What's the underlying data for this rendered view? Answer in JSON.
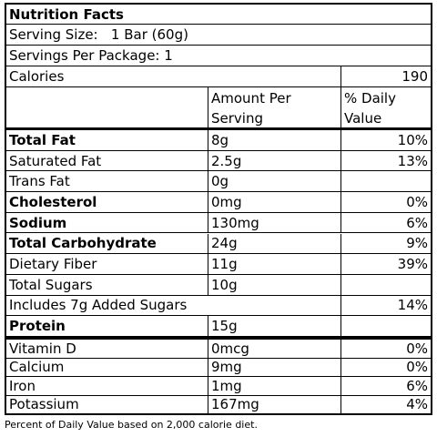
{
  "title": "Nutrition Facts",
  "serving_size": "Serving Size:   1 Bar (60g)",
  "servings_per_package": "Servings Per Package: 1",
  "calories": {
    "label": "Calories",
    "value": "190"
  },
  "header": {
    "amount": "Amount Per Serving",
    "dv": "% Daily Value"
  },
  "nutrients": [
    {
      "name": "Total Fat",
      "amount": "8g",
      "dv": "10%",
      "bold": true
    },
    {
      "name": "Saturated Fat",
      "amount": "2.5g",
      "dv": "13%",
      "bold": false
    },
    {
      "name": "Trans Fat",
      "amount": "0g",
      "dv": "",
      "bold": false
    },
    {
      "name": "Cholesterol",
      "amount": "0mg",
      "dv": "0%",
      "bold": true
    },
    {
      "name": "Sodium",
      "amount": "130mg",
      "dv": "6%",
      "bold": true
    },
    {
      "name": "Total Carbohydrate",
      "amount": "24g",
      "dv": "9%",
      "bold": true
    },
    {
      "name": "Dietary Fiber",
      "amount": "11g",
      "dv": "39%",
      "bold": false
    },
    {
      "name": "Total Sugars",
      "amount": "10g",
      "dv": "",
      "bold": false
    },
    {
      "name": "Includes 7g Added Sugars",
      "amount": "",
      "dv": "14%",
      "bold": false,
      "span": true
    },
    {
      "name": "Protein",
      "amount": "15g",
      "dv": "",
      "bold": true
    }
  ],
  "vitamins": [
    {
      "name": "Vitamin D",
      "amount": "0mcg",
      "dv": "0%"
    },
    {
      "name": "Calcium",
      "amount": "9mg",
      "dv": "0%"
    },
    {
      "name": "Iron",
      "amount": "1mg",
      "dv": "6%"
    },
    {
      "name": "Potassium",
      "amount": "167mg",
      "dv": "4%"
    }
  ],
  "footnote": "Percent of Daily Value based on 2,000 calorie diet."
}
